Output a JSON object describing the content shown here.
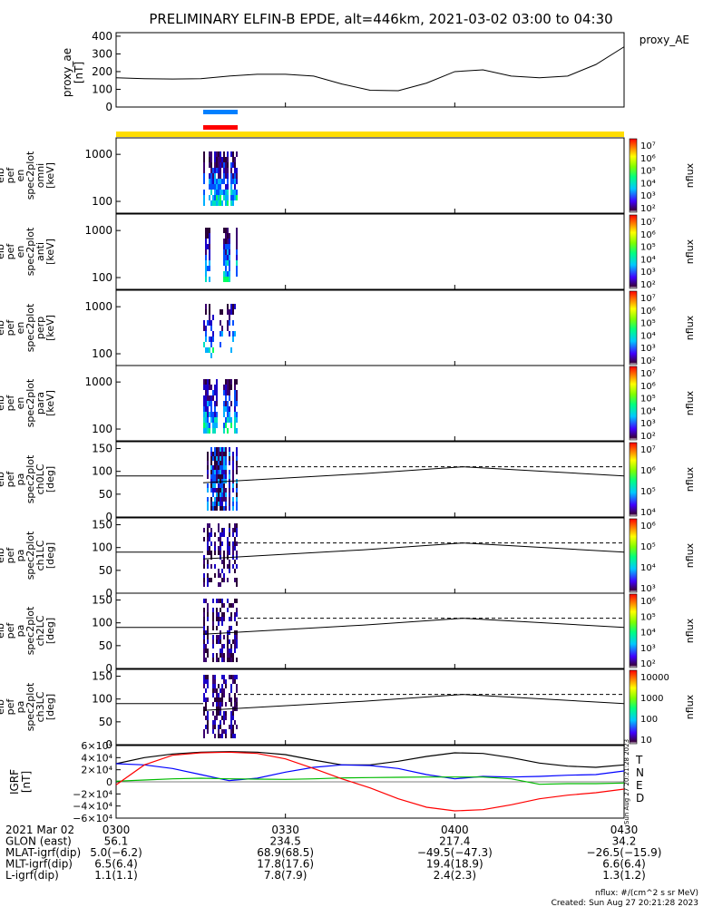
{
  "title": "PRELIMINARY ELFIN-B EPDE, alt=446km, 2021-03-02 03:00 to 04:30",
  "chart_data": [
    {
      "type": "line",
      "panel": "proxy_ae",
      "legend": "proxy_AE",
      "ylabel": [
        "proxy_ae",
        "[nT]"
      ],
      "ylim": [
        0,
        420
      ],
      "yticks": [
        "0",
        "100",
        "200",
        "300",
        "400"
      ],
      "x_minutes": [
        0,
        5,
        10,
        15,
        20,
        25,
        30,
        35,
        40,
        45,
        50,
        55,
        60,
        65,
        70,
        75,
        80,
        85,
        90
      ],
      "values": [
        165,
        160,
        158,
        160,
        175,
        185,
        185,
        175,
        130,
        95,
        92,
        135,
        200,
        210,
        175,
        165,
        175,
        240,
        340
      ]
    },
    {
      "type": "heatmap",
      "panel": "omni",
      "ylabel": [
        "elb",
        "pef",
        "en",
        "spec2plot",
        "omni",
        "[keV]"
      ],
      "yticks": [
        "100",
        "1000"
      ],
      "cbar_labels": [
        "10⁷",
        "10⁶",
        "10⁵",
        "10⁴",
        "10³",
        "10²"
      ],
      "cbar_title": "nflux"
    },
    {
      "type": "heatmap",
      "panel": "anti",
      "ylabel": [
        "elb",
        "pef",
        "en",
        "spec2plot",
        "anti",
        "[keV]"
      ],
      "yticks": [
        "100",
        "1000"
      ],
      "cbar_labels": [
        "10⁷",
        "10⁶",
        "10⁵",
        "10⁴",
        "10³",
        "10²"
      ],
      "cbar_title": "nflux"
    },
    {
      "type": "heatmap",
      "panel": "perp",
      "ylabel": [
        "elb",
        "pef",
        "en",
        "spec2plot",
        "perp",
        "[keV]"
      ],
      "yticks": [
        "100",
        "1000"
      ],
      "cbar_labels": [
        "10⁷",
        "10⁶",
        "10⁵",
        "10⁴",
        "10³",
        "10²"
      ],
      "cbar_title": "nflux"
    },
    {
      "type": "heatmap",
      "panel": "para",
      "ylabel": [
        "elb",
        "pef",
        "en",
        "spec2plot",
        "para",
        "[keV]"
      ],
      "yticks": [
        "100",
        "1000"
      ],
      "cbar_labels": [
        "10⁷",
        "10⁶",
        "10⁵",
        "10⁴",
        "10³",
        "10²"
      ],
      "cbar_title": "nflux"
    },
    {
      "type": "heatmap",
      "panel": "ch0LC",
      "ylabel": [
        "elb",
        "pef",
        "pa",
        "spec2plot",
        "ch0LC",
        "[deg]"
      ],
      "yticks": [
        "0",
        "50",
        "100",
        "150"
      ],
      "cbar_labels": [
        "10⁷",
        "10⁶",
        "10⁵",
        "10⁴"
      ],
      "cbar_title": "nflux"
    },
    {
      "type": "heatmap",
      "panel": "ch1LC",
      "ylabel": [
        "elb",
        "pef",
        "pa",
        "spec2plot",
        "ch1LC",
        "[deg]"
      ],
      "yticks": [
        "0",
        "50",
        "100",
        "150"
      ],
      "cbar_labels": [
        "10⁶",
        "10⁵",
        "10⁴",
        "10³"
      ],
      "cbar_title": "nflux"
    },
    {
      "type": "heatmap",
      "panel": "ch2LC",
      "ylabel": [
        "elb",
        "pef",
        "pa",
        "spec2plot",
        "ch2LC",
        "[deg]"
      ],
      "yticks": [
        "0",
        "50",
        "100",
        "150"
      ],
      "cbar_labels": [
        "10⁶",
        "10⁵",
        "10⁴",
        "10³",
        "10²"
      ],
      "cbar_title": "nflux"
    },
    {
      "type": "heatmap",
      "panel": "ch3LC",
      "ylabel": [
        "elb",
        "pef",
        "pa",
        "spec2plot",
        "ch3LC",
        "[deg]"
      ],
      "yticks": [
        "0",
        "50",
        "100",
        "150"
      ],
      "cbar_labels": [
        "10000",
        "1000",
        "100",
        "10"
      ],
      "cbar_title": "nflux"
    },
    {
      "type": "line",
      "panel": "IGRF",
      "ylabel": [
        "IGRF",
        "[nT]"
      ],
      "ylim": [
        -60000,
        60000
      ],
      "yticks": [
        "−6×10⁴",
        "−4×10⁴",
        "−2×10⁴",
        "0",
        "2×10⁴",
        "4×10⁴",
        "6×10⁴"
      ],
      "x_minutes": [
        0,
        5,
        10,
        15,
        20,
        25,
        30,
        35,
        40,
        45,
        50,
        55,
        60,
        65,
        70,
        75,
        80,
        85,
        90
      ],
      "series": [
        {
          "name": "T",
          "color": "#000000",
          "values": [
            30000,
            40000,
            46000,
            49000,
            50000,
            49000,
            45000,
            36000,
            28000,
            28000,
            34000,
            42000,
            48000,
            47000,
            40000,
            31000,
            26000,
            24000,
            28000
          ]
        },
        {
          "name": "N",
          "color": "#0000ff",
          "values": [
            30000,
            28000,
            22000,
            12000,
            2000,
            6000,
            16000,
            24000,
            28000,
            27000,
            22000,
            12000,
            5000,
            9000,
            8000,
            9000,
            11000,
            12000,
            18000
          ]
        },
        {
          "name": "E",
          "color": "#00bb00",
          "values": [
            1000,
            3000,
            5000,
            6000,
            5000,
            4500,
            4000,
            5000,
            6500,
            7000,
            7500,
            8000,
            8000,
            8000,
            5000,
            -4000,
            -3000,
            -3000,
            -2000
          ]
        },
        {
          "name": "D",
          "color": "#ff0000",
          "values": [
            -5000,
            28000,
            44000,
            48000,
            49000,
            47000,
            38000,
            22000,
            5000,
            -10000,
            -28000,
            -42000,
            -48000,
            -46000,
            -38000,
            -28000,
            -22000,
            -18000,
            -12000
          ]
        }
      ],
      "side_text": "Sun Aug 27 20:21:28 2023"
    }
  ],
  "xaxis": {
    "rows": [
      {
        "label": "2021 Mar 02",
        "values": [
          "0300",
          "0330",
          "0400",
          "0430"
        ]
      },
      {
        "label": "GLON (east)",
        "values": [
          "56.1",
          "234.5",
          "217.4",
          "34.2"
        ]
      },
      {
        "label": "MLAT-igrf(dip)",
        "values": [
          "5.0(−6.2)",
          "68.9(68.5)",
          "−49.5(−47.3)",
          "−26.5(−15.9)"
        ]
      },
      {
        "label": "MLT-igrf(dip)",
        "values": [
          "6.5(6.4)",
          "17.8(17.6)",
          "19.4(18.9)",
          "6.6(6.4)"
        ]
      },
      {
        "label": "L-igrf(dip)",
        "values": [
          "1.1(1.1)",
          "7.8(7.9)",
          "2.4(2.3)",
          "1.3(1.2)"
        ]
      }
    ]
  },
  "footer": {
    "units": "nflux: #/(cm^2 s sr MeV)",
    "created": "Created: Sun Aug 27 20:21:28 2023"
  },
  "colors": {
    "yellow_bar": "#ffdd00",
    "blue_bar": "#0080ff",
    "red_bar": "#ff0000",
    "ref_line": "#000000"
  }
}
